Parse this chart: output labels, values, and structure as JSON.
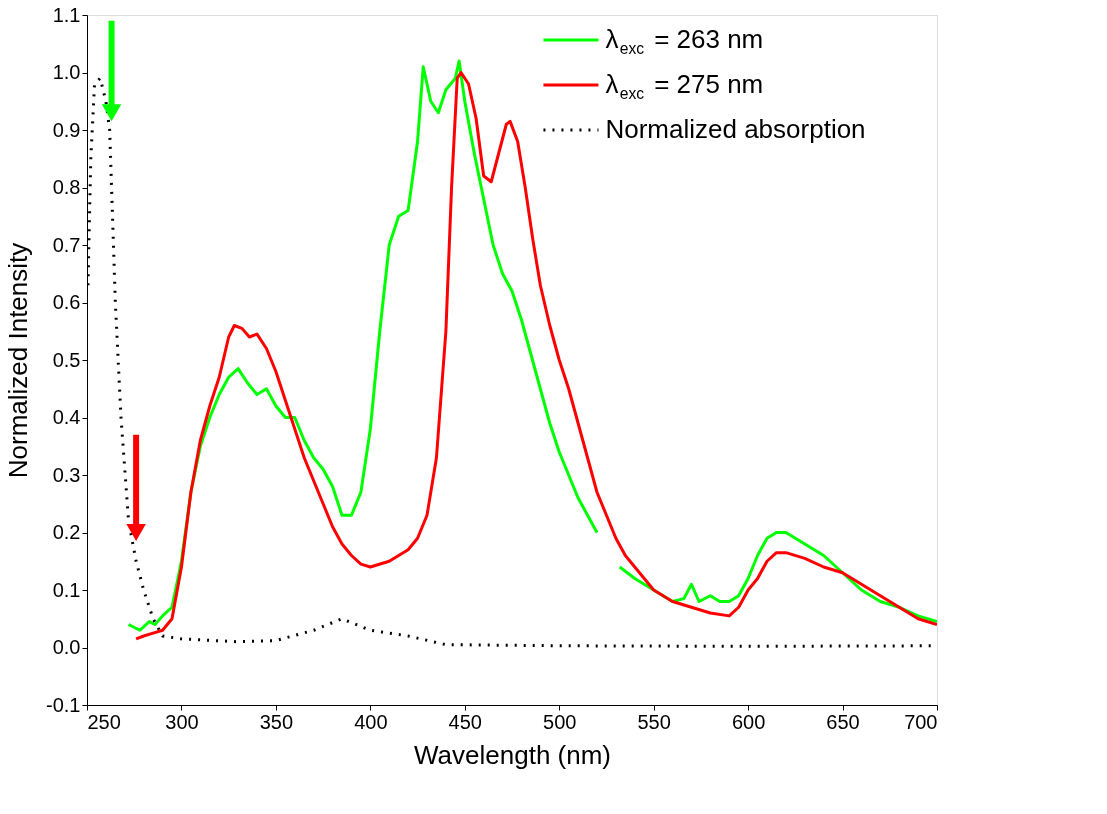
{
  "chart_data": {
    "type": "line",
    "xlabel": "Wavelength (nm)",
    "ylabel": "Normalized Intensity",
    "xlim": [
      250,
      700
    ],
    "xticks": [
      250,
      300,
      350,
      400,
      450,
      500,
      550,
      600,
      650,
      700
    ],
    "ylim": [
      -0.1,
      1.1
    ],
    "yticks": [
      {
        "value": -0.1,
        "label": "-0.1"
      },
      {
        "value": 0,
        "label": "0.0"
      },
      0.1,
      0.2,
      0.3,
      0.4,
      0.5,
      0.6,
      0.7,
      0.8,
      0.9,
      {
        "value": 1,
        "label": "1.0"
      },
      1.1
    ],
    "grid": false,
    "legend": "top right",
    "series": [
      {
        "name": "λ$_{exc}$ = 263 nm",
        "color": "#00ff00",
        "line_style": "solid",
        "x": [
          272,
          278,
          283,
          286,
          290,
          295,
          300,
          305,
          310,
          315,
          320,
          325,
          330,
          335,
          340,
          345,
          350,
          355,
          360,
          365,
          370,
          375,
          380,
          385,
          390,
          395,
          400,
          405,
          410,
          415,
          420,
          425,
          428,
          432,
          436,
          440,
          445,
          447,
          450,
          455,
          460,
          465,
          470,
          475,
          480,
          485,
          490,
          495,
          500,
          505,
          510,
          515,
          520,
          526,
          532,
          540,
          550,
          560,
          566,
          570,
          574,
          580,
          585,
          590,
          595,
          600,
          605,
          610,
          615,
          620,
          630,
          640,
          650,
          660,
          670,
          680,
          690,
          700
        ],
        "values": [
          0.04,
          0.03,
          0.045,
          0.04,
          0.055,
          0.07,
          0.15,
          0.27,
          0.35,
          0.4,
          0.44,
          0.47,
          0.485,
          0.46,
          0.44,
          0.45,
          0.42,
          0.4,
          0.4,
          0.36,
          0.33,
          0.31,
          0.28,
          0.23,
          0.23,
          0.27,
          0.38,
          0.55,
          0.7,
          0.75,
          0.76,
          0.88,
          1.01,
          0.95,
          0.93,
          0.97,
          0.99,
          1.02,
          0.95,
          0.86,
          0.78,
          0.7,
          0.65,
          0.62,
          0.57,
          0.51,
          0.45,
          0.39,
          0.34,
          0.3,
          0.26,
          0.23,
          0.2,
          null,
          0.14,
          0.12,
          0.1,
          0.08,
          0.085,
          0.11,
          0.08,
          0.09,
          0.08,
          0.08,
          0.09,
          0.12,
          0.16,
          0.19,
          0.2,
          0.2,
          0.18,
          0.16,
          0.13,
          0.1,
          0.08,
          0.07,
          0.055,
          0.045
        ]
      },
      {
        "name": "λ$_{exc}$ = 275 nm",
        "color": "#ff0000",
        "line_style": "solid",
        "x": [
          276,
          280,
          285,
          290,
          295,
          300,
          305,
          310,
          315,
          320,
          325,
          328,
          332,
          336,
          340,
          345,
          350,
          355,
          360,
          365,
          370,
          375,
          380,
          385,
          390,
          395,
          400,
          410,
          420,
          425,
          430,
          435,
          440,
          443,
          446,
          448,
          452,
          456,
          460,
          464,
          468,
          472,
          474,
          478,
          482,
          486,
          490,
          495,
          500,
          505,
          510,
          515,
          520,
          525,
          530,
          535,
          540,
          545,
          550,
          560,
          570,
          580,
          590,
          595,
          600,
          605,
          610,
          615,
          620,
          630,
          640,
          650,
          660,
          670,
          680,
          690,
          700
        ],
        "values": [
          0.015,
          0.02,
          0.025,
          0.03,
          0.05,
          0.14,
          0.27,
          0.36,
          0.42,
          0.47,
          0.54,
          0.56,
          0.555,
          0.54,
          0.545,
          0.52,
          0.48,
          0.43,
          0.38,
          0.33,
          0.29,
          0.25,
          0.21,
          0.18,
          0.16,
          0.145,
          0.14,
          0.15,
          0.17,
          0.19,
          0.23,
          0.33,
          0.55,
          0.8,
          0.99,
          1.0,
          0.98,
          0.92,
          0.82,
          0.81,
          0.86,
          0.91,
          0.915,
          0.88,
          0.8,
          0.71,
          0.63,
          0.56,
          0.5,
          0.45,
          0.39,
          0.33,
          0.27,
          0.23,
          0.19,
          0.16,
          0.14,
          0.12,
          0.1,
          0.08,
          0.07,
          0.06,
          0.055,
          0.07,
          0.1,
          0.12,
          0.15,
          0.165,
          0.165,
          0.155,
          0.14,
          0.13,
          0.11,
          0.09,
          0.07,
          0.05,
          0.04
        ]
      },
      {
        "name": "Normalized absorption",
        "color": "#000000",
        "line_style": "dotted",
        "x": [
          250.5,
          252,
          254,
          257,
          260,
          262,
          265,
          268,
          272,
          276,
          280,
          285,
          290,
          300,
          330,
          350,
          370,
          385,
          400,
          420,
          440,
          500,
          600,
          700
        ],
        "values": [
          0.63,
          0.85,
          0.98,
          0.99,
          0.95,
          0.9,
          0.6,
          0.4,
          0.22,
          0.15,
          0.1,
          0.05,
          0.02,
          0.015,
          0.01,
          0.012,
          0.03,
          0.05,
          0.03,
          0.02,
          0.005,
          0.003,
          0.002,
          0.003
        ]
      },
      {
        "color": "#00ff00",
        "line_style": "solid",
        "marker": "triangle",
        "x": [
          263,
          263
        ],
        "values": [
          1.09,
          0.93
        ]
      },
      {
        "color": "#ff0000",
        "line_style": "solid",
        "marker": "triangle",
        "x": [
          276,
          276
        ],
        "values": [
          0.37,
          0.2
        ]
      }
    ]
  }
}
